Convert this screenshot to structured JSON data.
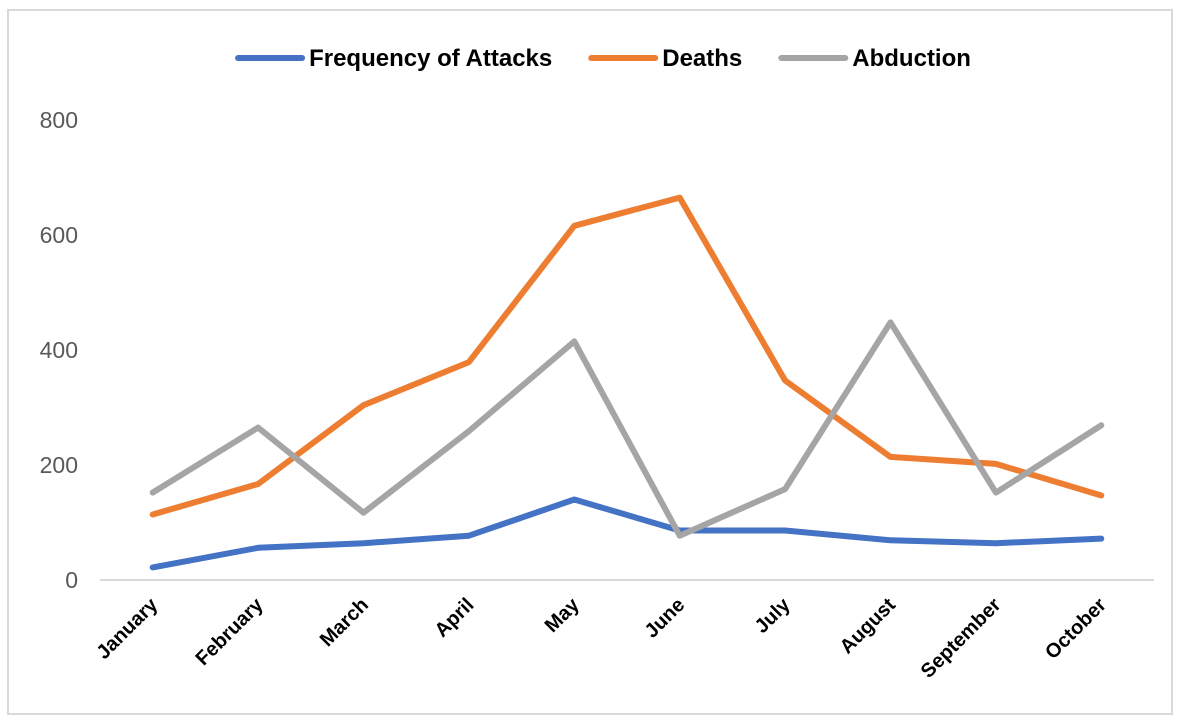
{
  "chart_data": {
    "type": "line",
    "title": "",
    "xlabel": "",
    "ylabel": "",
    "categories": [
      "January",
      "February",
      "March",
      "April",
      "May",
      "June",
      "July",
      "August",
      "September",
      "October"
    ],
    "ylim": [
      0,
      800
    ],
    "yticks": [
      0,
      200,
      400,
      600,
      800
    ],
    "grid": false,
    "legend": "top",
    "series": [
      {
        "name": "Frequency of Attacks",
        "color": "#4472c4",
        "values": [
          22,
          56,
          64,
          77,
          140,
          86,
          86,
          69,
          64,
          72
        ]
      },
      {
        "name": "Deaths",
        "color": "#ed7d31",
        "values": [
          114,
          167,
          304,
          379,
          616,
          665,
          347,
          214,
          202,
          147
        ]
      },
      {
        "name": "Abduction",
        "color": "#a5a5a5",
        "values": [
          152,
          265,
          117,
          259,
          415,
          77,
          158,
          448,
          152,
          269
        ]
      }
    ]
  }
}
